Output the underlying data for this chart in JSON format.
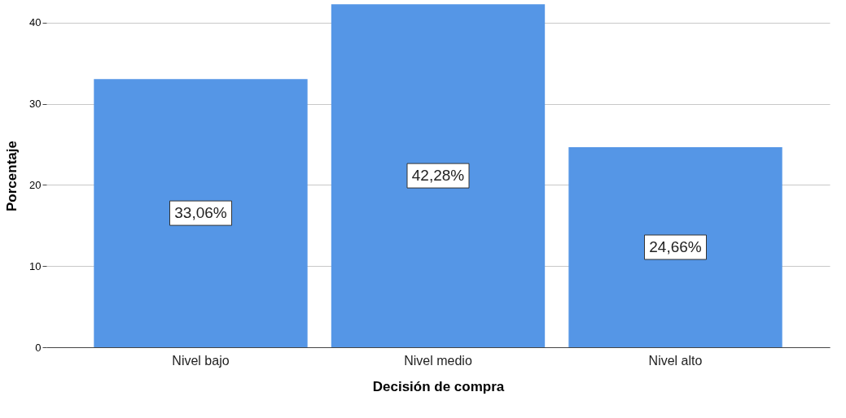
{
  "chart_data": {
    "type": "bar",
    "xlabel": "Decisión de compra",
    "ylabel": "Porcentaje",
    "categories": [
      "Nivel bajo",
      "Nivel medio",
      "Nivel alto"
    ],
    "values": [
      33.06,
      42.28,
      24.66
    ],
    "value_labels": [
      "33,06%",
      "42,28%",
      "24,66%"
    ],
    "color": "#5596e6",
    "ylim": [
      0,
      42.3
    ],
    "yticks": [
      0,
      10,
      20,
      30,
      40
    ],
    "grid": "y"
  }
}
